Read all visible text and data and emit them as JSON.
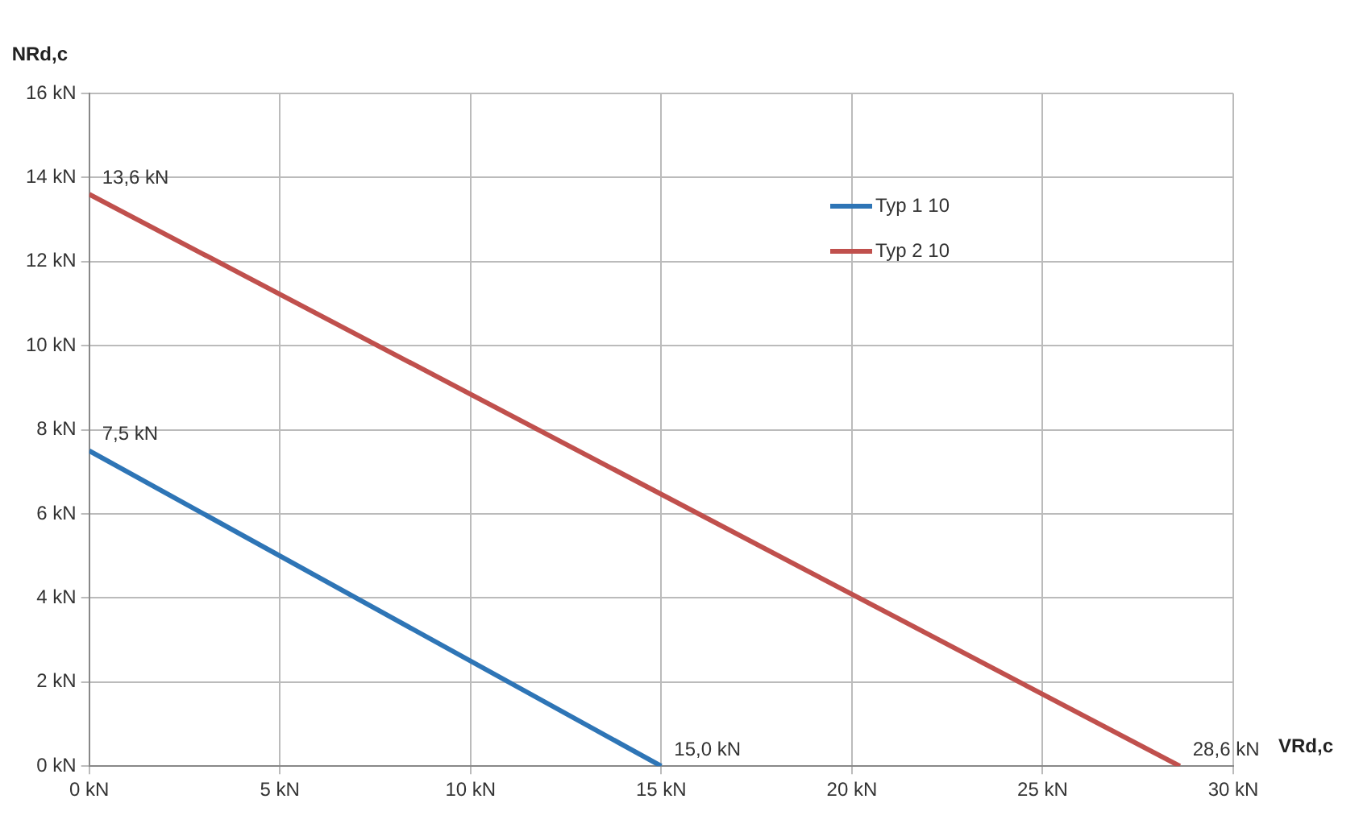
{
  "chart_data": {
    "type": "line",
    "xlabel": "VRd,c",
    "ylabel": "NRd,c",
    "series": [
      {
        "name": "Typ 1 10",
        "color": "#2e75b6",
        "x": [
          0,
          15
        ],
        "values": [
          7.5,
          0
        ]
      },
      {
        "name": "Typ 2 10",
        "color": "#c0504d",
        "x": [
          0,
          28.6
        ],
        "values": [
          13.6,
          0
        ]
      }
    ],
    "xlim": [
      0,
      30
    ],
    "xticks": [
      {
        "value": 0,
        "label": "0 kN"
      },
      {
        "value": 5,
        "label": "5 kN"
      },
      {
        "value": 10,
        "label": "10 kN"
      },
      {
        "value": 15,
        "label": "15 kN"
      },
      {
        "value": 20,
        "label": "20 kN"
      },
      {
        "value": 25,
        "label": "25 kN"
      },
      {
        "value": 30,
        "label": "30 kN"
      }
    ],
    "ylim": [
      0,
      16
    ],
    "yticks": [
      {
        "value": 0,
        "label": "0 kN"
      },
      {
        "value": 2,
        "label": "2 kN"
      },
      {
        "value": 4,
        "label": "4 kN"
      },
      {
        "value": 6,
        "label": "6 kN"
      },
      {
        "value": 8,
        "label": "8 kN"
      },
      {
        "value": 10,
        "label": "10 kN"
      },
      {
        "value": 12,
        "label": "12 kN"
      },
      {
        "value": 14,
        "label": "14 kN"
      },
      {
        "value": 16,
        "label": "16 kN"
      }
    ],
    "annotations": [
      {
        "text": "13,6 kN",
        "x": 0,
        "y": 13.6
      },
      {
        "text": "7,5 kN",
        "x": 0,
        "y": 7.5
      },
      {
        "text": "15,0 kN",
        "x": 15,
        "y": 0
      },
      {
        "text": "28,6 kN",
        "x": 28.6,
        "y": 0
      }
    ],
    "grid": true,
    "legend": "top right",
    "marker": "none",
    "line_style": "solid"
  }
}
